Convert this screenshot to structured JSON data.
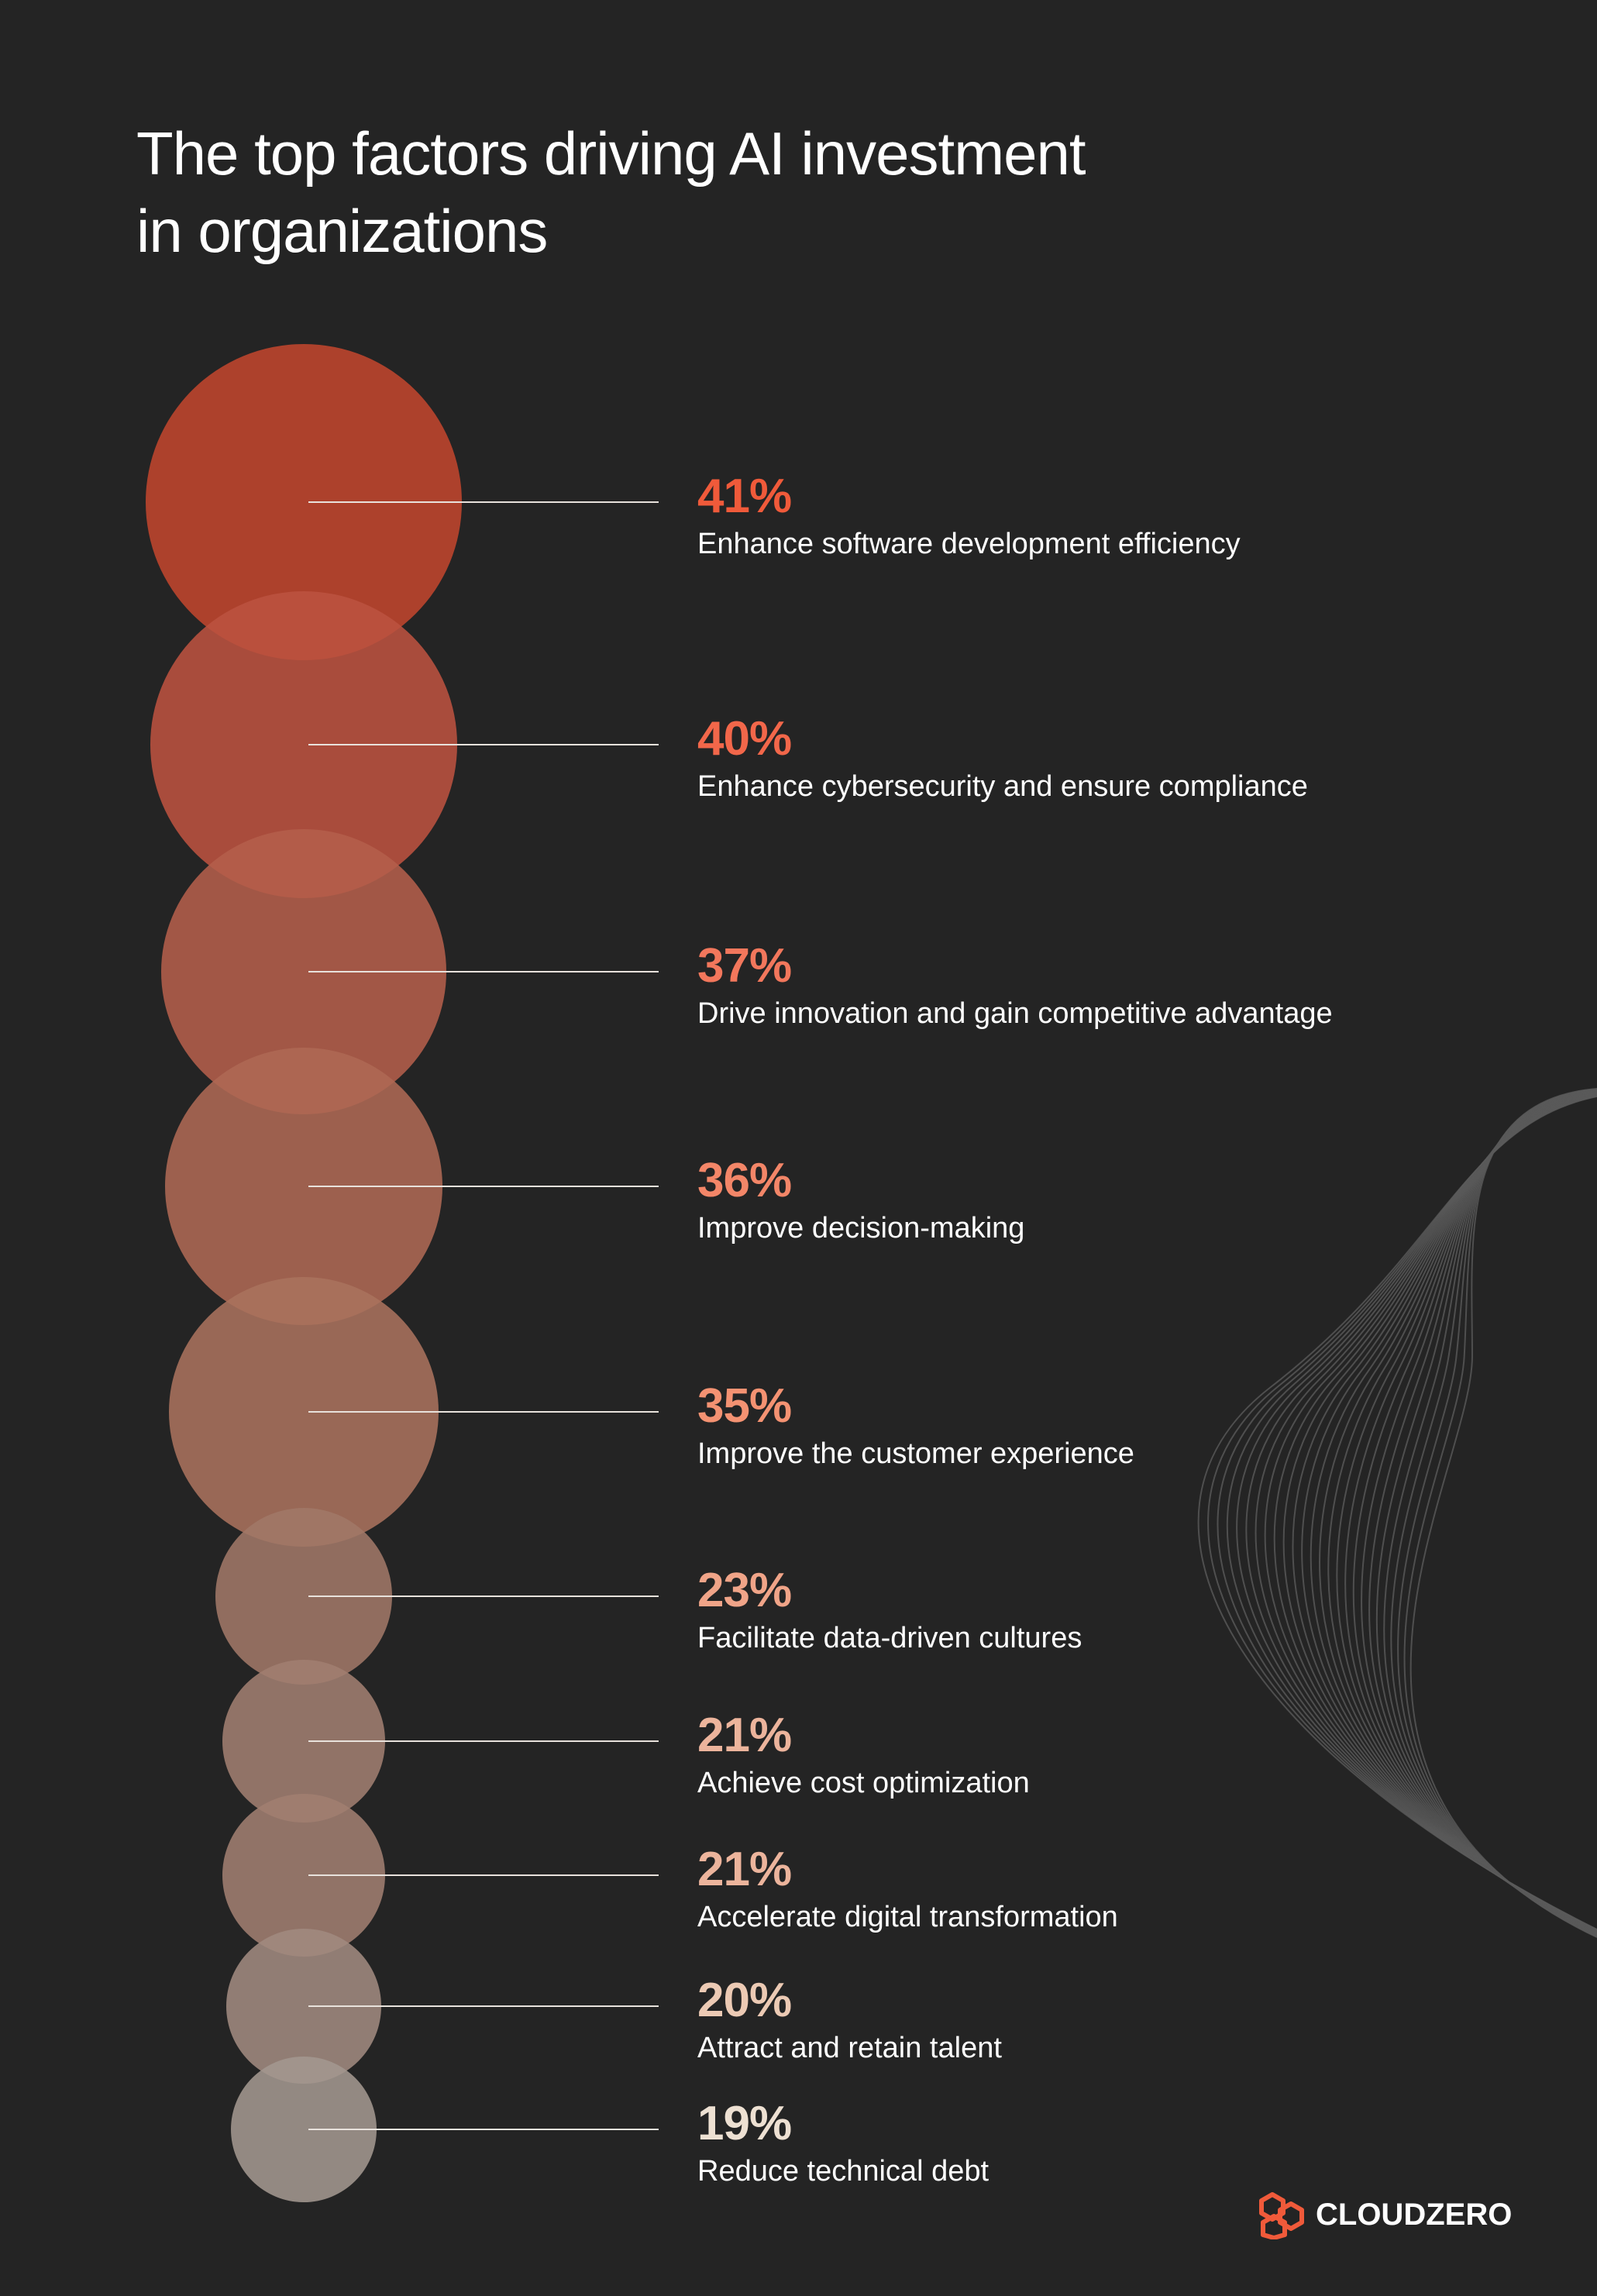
{
  "title_lines": [
    "The top factors driving AI investment",
    "in organizations"
  ],
  "chart_data": {
    "type": "bubble-bar",
    "title": "The top factors driving AI investment in organizations",
    "unit": "%",
    "categories": [
      "Enhance software development efficiency",
      "Enhance cybersecurity and ensure compliance",
      "Drive innovation and gain competitive advantage",
      "Improve decision-making",
      "Improve the customer experience",
      "Facilitate data-driven cultures",
      "Achieve cost optimization",
      "Accelerate digital transformation",
      "Attract and retain talent",
      "Reduce technical debt"
    ],
    "values": [
      41,
      40,
      37,
      36,
      35,
      23,
      21,
      21,
      20,
      19
    ],
    "labels": [
      "41%",
      "40%",
      "37%",
      "36%",
      "35%",
      "23%",
      "21%",
      "21%",
      "20%",
      "19%"
    ],
    "colors": [
      "#f05a3a",
      "#f2674a",
      "#f2775c",
      "#f38668",
      "#f49272",
      "#f0a488",
      "#ecb49c",
      "#ecb49c",
      "#eccab4",
      "#ede0d2"
    ],
    "bubble_colors": [
      "#c0452e",
      "#bc5240",
      "#b45f4b",
      "#ae6954",
      "#aa725d",
      "#a17868",
      "#a17e71",
      "#a17e71",
      "#a18a7f",
      "#a3978f"
    ],
    "sort": "descending",
    "grid": false,
    "legend": "none"
  },
  "logo": {
    "text": "CLOUDZERO",
    "icon": "cloudzero-hexagon-icon",
    "color": "#f05a3a"
  }
}
